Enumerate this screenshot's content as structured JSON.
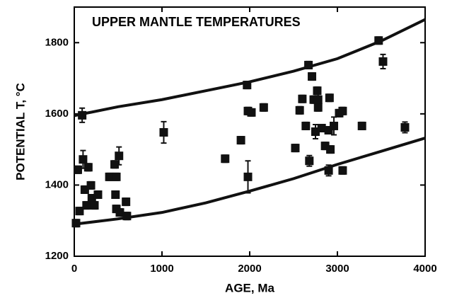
{
  "chart_data": {
    "type": "scatter",
    "title": "UPPER MANTLE TEMPERATURES",
    "x_label": "AGE, Ma",
    "y_label": "POTENTIAL  T, °C",
    "xlim": [
      0,
      4000
    ],
    "xticks": [
      0,
      1000,
      2000,
      3000,
      4000
    ],
    "ylim": [
      1200,
      1900
    ],
    "yticks": [
      1200,
      1400,
      1600,
      1800
    ],
    "color": "#111111",
    "x": [
      90,
      40,
      60,
      100,
      120,
      140,
      160,
      190,
      200,
      230,
      270,
      400,
      460,
      480,
      470,
      480,
      520,
      590,
      600,
      510,
      1020,
      1720,
      1900,
      1980,
      1970,
      1980,
      2020,
      2160,
      2520,
      2570,
      2600,
      2640,
      2670,
      2680,
      2710,
      2730,
      2750,
      2770,
      2780,
      2820,
      2860,
      2900,
      2900,
      2910,
      2920,
      2960,
      3020,
      3060,
      3060,
      3280,
      3470,
      3520,
      3770,
      2780,
      20
    ],
    "values": [
      1596,
      1443,
      1327,
      1472,
      1387,
      1343,
      1450,
      1399,
      1363,
      1343,
      1373,
      1423,
      1458,
      1423,
      1373,
      1333,
      1323,
      1353,
      1313,
      1482,
      1548,
      1474,
      1526,
      1423,
      1681,
      1608,
      1604,
      1618,
      1504,
      1610,
      1642,
      1566,
      1737,
      1468,
      1705,
      1640,
      1550,
      1665,
      1618,
      1560,
      1510,
      1554,
      1441,
      1645,
      1500,
      1566,
      1602,
      1608,
      1441,
      1566,
      1806,
      1747,
      1562,
      1640,
      1293
    ],
    "errors": [
      20,
      10,
      10,
      25,
      10,
      10,
      10,
      10,
      10,
      10,
      10,
      10,
      10,
      10,
      10,
      10,
      10,
      10,
      10,
      25,
      30,
      10,
      10,
      45,
      10,
      10,
      10,
      10,
      10,
      10,
      10,
      10,
      10,
      15,
      10,
      10,
      20,
      10,
      10,
      10,
      10,
      10,
      15,
      10,
      10,
      25,
      10,
      10,
      10,
      10,
      10,
      20,
      15,
      30,
      10
    ],
    "curves": [
      {
        "x": [
          0,
          500,
          1000,
          1500,
          2000,
          2500,
          3000,
          3500,
          4000
        ],
        "values": [
          1595,
          1620,
          1640,
          1665,
          1690,
          1720,
          1755,
          1805,
          1865
        ]
      },
      {
        "x": [
          0,
          500,
          1000,
          1500,
          2000,
          2500,
          3000,
          3500,
          4000
        ],
        "values": [
          1290,
          1305,
          1323,
          1350,
          1383,
          1418,
          1458,
          1495,
          1532
        ]
      }
    ]
  }
}
